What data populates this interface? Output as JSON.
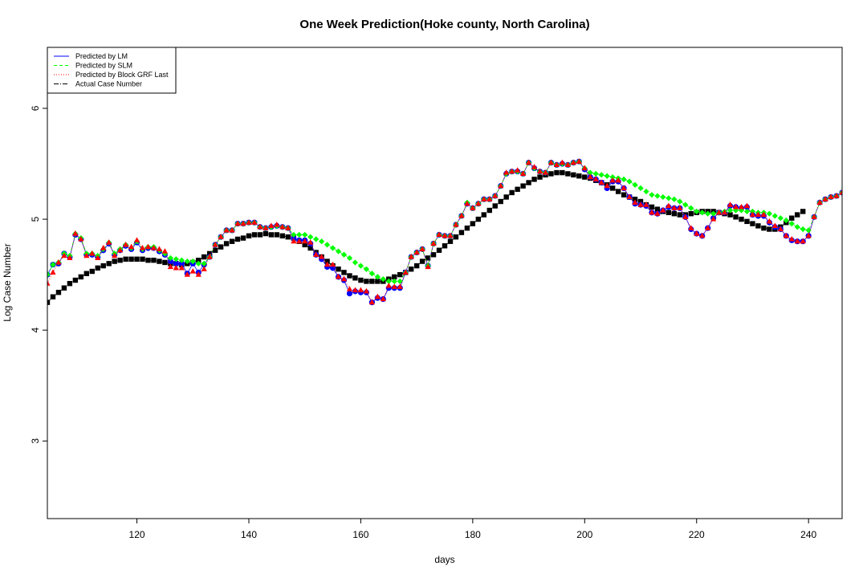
{
  "chart_data": {
    "type": "line",
    "title": "One Week Prediction(Hoke county, North Carolina)",
    "xlabel": "days",
    "ylabel": "Log Case Number",
    "xlim": [
      104,
      246
    ],
    "ylim": [
      2.3,
      6.55
    ],
    "x_ticks": [
      120,
      140,
      160,
      180,
      200,
      220,
      240
    ],
    "y_ticks": [
      3,
      4,
      5,
      6
    ],
    "grid": false,
    "legend_position": "top-left",
    "legend": [
      {
        "label": "Predicted by LM",
        "color": "#0000ff",
        "line": "solid"
      },
      {
        "label": "Predicted by SLM",
        "color": "#00ff00",
        "line": "dashed"
      },
      {
        "label": "Predicted by Block GRF Last",
        "color": "#ff0000",
        "line": "dotted"
      },
      {
        "label": "Actual Case Number",
        "color": "#000000",
        "line": "dashdot"
      }
    ],
    "series": [
      {
        "name": "Actual Case Number",
        "color": "#000000",
        "marker": "square",
        "x_start": 104,
        "values": [
          4.25,
          4.3,
          4.34,
          4.38,
          4.42,
          4.45,
          4.48,
          4.51,
          4.53,
          4.56,
          4.58,
          4.6,
          4.62,
          4.63,
          4.64,
          4.64,
          4.64,
          4.64,
          4.63,
          4.63,
          4.62,
          4.61,
          4.6,
          4.6,
          4.59,
          4.6,
          4.61,
          4.63,
          4.66,
          4.69,
          4.72,
          4.75,
          4.78,
          4.8,
          4.82,
          4.83,
          4.85,
          4.86,
          4.86,
          4.87,
          4.86,
          4.86,
          4.85,
          4.84,
          4.83,
          4.8,
          4.77,
          4.74,
          4.7,
          4.66,
          4.62,
          4.58,
          4.55,
          4.52,
          4.49,
          4.47,
          4.45,
          4.44,
          4.44,
          4.44,
          4.44,
          4.46,
          4.48,
          4.5,
          4.52,
          4.55,
          4.58,
          4.62,
          4.65,
          4.68,
          4.72,
          4.76,
          4.8,
          4.84,
          4.88,
          4.92,
          4.96,
          5.0,
          5.04,
          5.08,
          5.12,
          5.16,
          5.2,
          5.24,
          5.27,
          5.3,
          5.33,
          5.36,
          5.38,
          5.4,
          5.41,
          5.42,
          5.42,
          5.41,
          5.4,
          5.39,
          5.38,
          5.37,
          5.35,
          5.33,
          5.31,
          5.28,
          5.25,
          5.22,
          5.2,
          5.18,
          5.16,
          5.13,
          5.11,
          5.09,
          5.07,
          5.06,
          5.05,
          5.04,
          5.04,
          5.05,
          5.06,
          5.07,
          5.07,
          5.07,
          5.06,
          5.05,
          5.04,
          5.02,
          5.0,
          4.98,
          4.96,
          4.94,
          4.92,
          4.91,
          4.91,
          4.93,
          4.97,
          5.01,
          5.04,
          5.07
        ]
      },
      {
        "name": "Predicted by LM",
        "color": "#0000ff",
        "marker": "circle",
        "x_start": 104,
        "values": [
          4.5,
          4.59,
          4.6,
          4.69,
          4.66,
          4.86,
          4.82,
          4.68,
          4.68,
          4.66,
          4.72,
          4.78,
          4.68,
          4.72,
          4.76,
          4.73,
          4.79,
          4.72,
          4.74,
          4.74,
          4.71,
          4.68,
          4.62,
          4.6,
          4.6,
          4.51,
          4.6,
          4.52,
          4.59,
          4.66,
          4.77,
          4.84,
          4.9,
          4.9,
          4.96,
          4.96,
          4.97,
          4.97,
          4.93,
          4.92,
          4.93,
          4.94,
          4.93,
          4.92,
          4.83,
          4.81,
          4.81,
          4.78,
          4.68,
          4.64,
          4.57,
          4.56,
          4.48,
          4.45,
          4.33,
          4.35,
          4.34,
          4.34,
          4.25,
          4.29,
          4.28,
          4.38,
          4.38,
          4.38,
          4.52,
          4.66,
          4.7,
          4.73,
          4.58,
          4.78,
          4.86,
          4.85,
          4.85,
          4.95,
          5.03,
          5.14,
          5.1,
          5.14,
          5.18,
          5.18,
          5.21,
          5.3,
          5.41,
          5.43,
          5.43,
          5.41,
          5.51,
          5.46,
          5.43,
          5.42,
          5.51,
          5.49,
          5.5,
          5.49,
          5.51,
          5.52,
          5.45,
          5.38,
          5.36,
          5.33,
          5.28,
          5.34,
          5.34,
          5.28,
          5.2,
          5.14,
          5.13,
          5.12,
          5.06,
          5.05,
          5.08,
          5.11,
          5.1,
          5.1,
          5.02,
          4.91,
          4.87,
          4.85,
          4.92,
          5.01,
          5.06,
          5.06,
          5.12,
          5.11,
          5.1,
          5.11,
          5.04,
          5.03,
          5.03,
          4.97,
          4.93,
          4.91,
          4.85,
          4.81,
          4.8,
          4.8,
          4.85,
          5.02,
          5.15,
          5.18,
          5.2,
          5.21,
          5.24
        ]
      },
      {
        "name": "Predicted by SLM",
        "color": "#00ff00",
        "marker": "diamond",
        "x_start": 104,
        "values": [
          4.5,
          4.59,
          4.61,
          4.69,
          4.67,
          4.87,
          4.83,
          4.69,
          4.69,
          4.67,
          4.73,
          4.79,
          4.69,
          4.73,
          4.77,
          4.74,
          4.8,
          4.73,
          4.75,
          4.75,
          4.72,
          4.69,
          4.65,
          4.64,
          4.63,
          4.62,
          4.62,
          4.6,
          4.6,
          4.66,
          4.77,
          4.84,
          4.9,
          4.9,
          4.96,
          4.96,
          4.97,
          4.97,
          4.93,
          4.92,
          4.93,
          4.94,
          4.93,
          4.92,
          4.86,
          4.86,
          4.86,
          4.84,
          4.82,
          4.8,
          4.77,
          4.74,
          4.71,
          4.68,
          4.65,
          4.61,
          4.58,
          4.55,
          4.51,
          4.48,
          4.46,
          4.44,
          4.44,
          4.44,
          4.52,
          4.66,
          4.7,
          4.73,
          4.58,
          4.78,
          4.86,
          4.85,
          4.85,
          4.95,
          5.03,
          5.15,
          5.1,
          5.14,
          5.18,
          5.18,
          5.21,
          5.3,
          5.41,
          5.43,
          5.43,
          5.41,
          5.51,
          5.46,
          5.43,
          5.42,
          5.51,
          5.49,
          5.5,
          5.49,
          5.51,
          5.52,
          5.46,
          5.42,
          5.41,
          5.4,
          5.39,
          5.38,
          5.37,
          5.36,
          5.34,
          5.31,
          5.28,
          5.25,
          5.22,
          5.21,
          5.2,
          5.19,
          5.18,
          5.16,
          5.13,
          5.1,
          5.07,
          5.06,
          5.05,
          5.05,
          5.06,
          5.07,
          5.08,
          5.08,
          5.08,
          5.07,
          5.07,
          5.06,
          5.06,
          5.05,
          5.03,
          5.01,
          4.99,
          4.96,
          4.93,
          4.91,
          4.9,
          5.02,
          5.15,
          5.18,
          5.2,
          5.21,
          5.24
        ]
      },
      {
        "name": "Predicted by Block GRF Last",
        "color": "#ff0000",
        "marker": "triangle",
        "x_start": 104,
        "values": [
          4.42,
          4.52,
          4.61,
          4.67,
          4.65,
          4.87,
          4.82,
          4.67,
          4.69,
          4.65,
          4.74,
          4.79,
          4.67,
          4.72,
          4.77,
          4.75,
          4.81,
          4.74,
          4.75,
          4.74,
          4.73,
          4.71,
          4.57,
          4.56,
          4.56,
          4.5,
          4.53,
          4.5,
          4.55,
          4.66,
          4.77,
          4.84,
          4.9,
          4.9,
          4.96,
          4.96,
          4.97,
          4.97,
          4.93,
          4.92,
          4.94,
          4.95,
          4.93,
          4.92,
          4.8,
          4.8,
          4.8,
          4.79,
          4.68,
          4.66,
          4.59,
          4.59,
          4.48,
          4.46,
          4.37,
          4.36,
          4.36,
          4.35,
          4.25,
          4.3,
          4.28,
          4.4,
          4.39,
          4.39,
          4.52,
          4.66,
          4.7,
          4.73,
          4.57,
          4.78,
          4.86,
          4.85,
          4.85,
          4.95,
          5.03,
          5.14,
          5.1,
          5.14,
          5.18,
          5.18,
          5.21,
          5.3,
          5.42,
          5.43,
          5.44,
          5.41,
          5.51,
          5.47,
          5.43,
          5.42,
          5.51,
          5.49,
          5.51,
          5.49,
          5.51,
          5.52,
          5.46,
          5.38,
          5.36,
          5.33,
          5.3,
          5.35,
          5.35,
          5.28,
          5.2,
          5.15,
          5.13,
          5.13,
          5.06,
          5.05,
          5.08,
          5.12,
          5.1,
          5.1,
          5.02,
          4.92,
          4.87,
          4.85,
          4.92,
          5.0,
          5.06,
          5.06,
          5.13,
          5.11,
          5.11,
          5.12,
          5.04,
          5.04,
          5.04,
          4.98,
          4.94,
          4.91,
          4.85,
          4.82,
          4.8,
          4.8,
          4.85,
          5.02,
          5.15,
          5.18,
          5.2,
          5.21,
          5.24
        ]
      }
    ]
  }
}
